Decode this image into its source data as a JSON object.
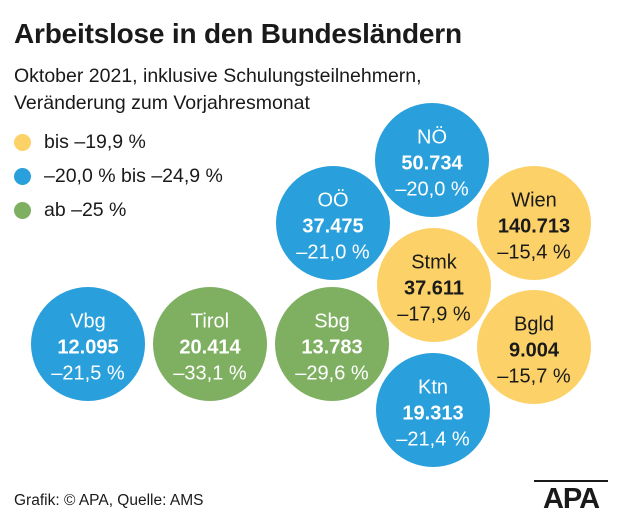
{
  "title": "Arbeitslose in den Bundesländern",
  "subtitle_line1": "Oktober 2021, inklusive Schulungsteilnehmern,",
  "subtitle_line2": "Veränderung zum Vorjahresmonat",
  "colors": {
    "yellow": "#fcd268",
    "blue": "#29a0dc",
    "green": "#7fb062"
  },
  "legend": [
    {
      "label": "bis –19,9 %",
      "color": "yellow"
    },
    {
      "label": "–20,0 % bis –24,9 %",
      "color": "blue"
    },
    {
      "label": "ab –25 %",
      "color": "green"
    }
  ],
  "chart_data": {
    "type": "bubble",
    "title": "Arbeitslose in den Bundesländern",
    "subtitle": "Oktober 2021, inklusive Schulungsteilnehmern, Veränderung zum Vorjahresmonat",
    "items": [
      {
        "name": "NÖ",
        "value": "50.734",
        "change": "–20,0 %",
        "category": "blue"
      },
      {
        "name": "OÖ",
        "value": "37.475",
        "change": "–21,0 %",
        "category": "blue"
      },
      {
        "name": "Wien",
        "value": "140.713",
        "change": "–15,4 %",
        "category": "yellow"
      },
      {
        "name": "Stmk",
        "value": "37.611",
        "change": "–17,9 %",
        "category": "yellow"
      },
      {
        "name": "Vbg",
        "value": "12.095",
        "change": "–21,5 %",
        "category": "blue"
      },
      {
        "name": "Tirol",
        "value": "20.414",
        "change": "–33,1 %",
        "category": "green"
      },
      {
        "name": "Sbg",
        "value": "13.783",
        "change": "–29,6 %",
        "category": "green"
      },
      {
        "name": "Bgld",
        "value": "9.004",
        "change": "–15,7 %",
        "category": "yellow"
      },
      {
        "name": "Ktn",
        "value": "19.313",
        "change": "–21,4 %",
        "category": "blue"
      }
    ]
  },
  "footer": "Grafik: © APA, Quelle: AMS",
  "logo": "APA"
}
